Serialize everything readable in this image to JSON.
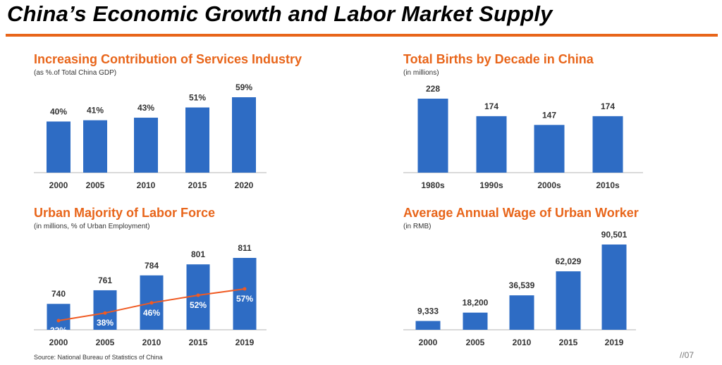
{
  "page": {
    "title": "China’s Economic Growth and Labor Market Supply",
    "source": "Source: National Bureau of Statistics of China",
    "page_number": "//07",
    "accent_color": "#e8651a",
    "bar_color": "#2e6cc4",
    "line_color": "#f05a22"
  },
  "panels": {
    "services": {
      "title": "Increasing Contribution of Services Industry",
      "subtitle": "(as %.of Total China GDP)"
    },
    "births": {
      "title": "Total Births by Decade in China",
      "subtitle": "(in millions)"
    },
    "labor": {
      "title": "Urban Majority of Labor Force",
      "subtitle": "(in millions, % of Urban Employment)"
    },
    "wage": {
      "title": "Average Annual Wage of Urban Worker",
      "subtitle": "(in RMB)"
    }
  },
  "chart_data": [
    {
      "type": "bar",
      "title": "Increasing Contribution of Services Industry",
      "subtitle": "(as %.of Total China GDP)",
      "categories": [
        "2000",
        "2005",
        "2010",
        "2015",
        "2020"
      ],
      "values": [
        40,
        41,
        43,
        51,
        59
      ],
      "labels": [
        "40%",
        "41%",
        "43%",
        "51%",
        "59%"
      ],
      "ylim": [
        0,
        59
      ],
      "grid": false,
      "legend": "none"
    },
    {
      "type": "bar",
      "title": "Total Births by Decade in China",
      "subtitle": "(in millions)",
      "categories": [
        "1980s",
        "1990s",
        "2000s",
        "2010s"
      ],
      "values": [
        228,
        174,
        147,
        174
      ],
      "labels": [
        "228",
        "174",
        "147",
        "174"
      ],
      "ylim": [
        0,
        228
      ],
      "grid": false,
      "legend": "none"
    },
    {
      "type": "bar",
      "title": "Urban Majority of Labor Force",
      "subtitle": "(in millions, % of Urban Employment)",
      "categories": [
        "2000",
        "2005",
        "2010",
        "2015",
        "2019"
      ],
      "values": [
        740,
        761,
        784,
        801,
        811
      ],
      "labels": [
        "740",
        "761",
        "784",
        "801",
        "811"
      ],
      "ylim": [
        700,
        811
      ],
      "line_series": {
        "values": [
          32,
          38,
          46,
          52,
          57
        ],
        "labels": [
          "32%",
          "38%",
          "46%",
          "52%",
          "57%"
        ]
      },
      "grid": false,
      "legend": "none"
    },
    {
      "type": "bar",
      "title": "Average Annual Wage of Urban Worker",
      "subtitle": "(in RMB)",
      "categories": [
        "2000",
        "2005",
        "2010",
        "2015",
        "2019"
      ],
      "values": [
        9333,
        18200,
        36539,
        62029,
        90501
      ],
      "labels": [
        "9,333",
        "18,200",
        "36,539",
        "62,029",
        "90,501"
      ],
      "ylim": [
        0,
        90501
      ],
      "grid": false,
      "legend": "none"
    }
  ]
}
